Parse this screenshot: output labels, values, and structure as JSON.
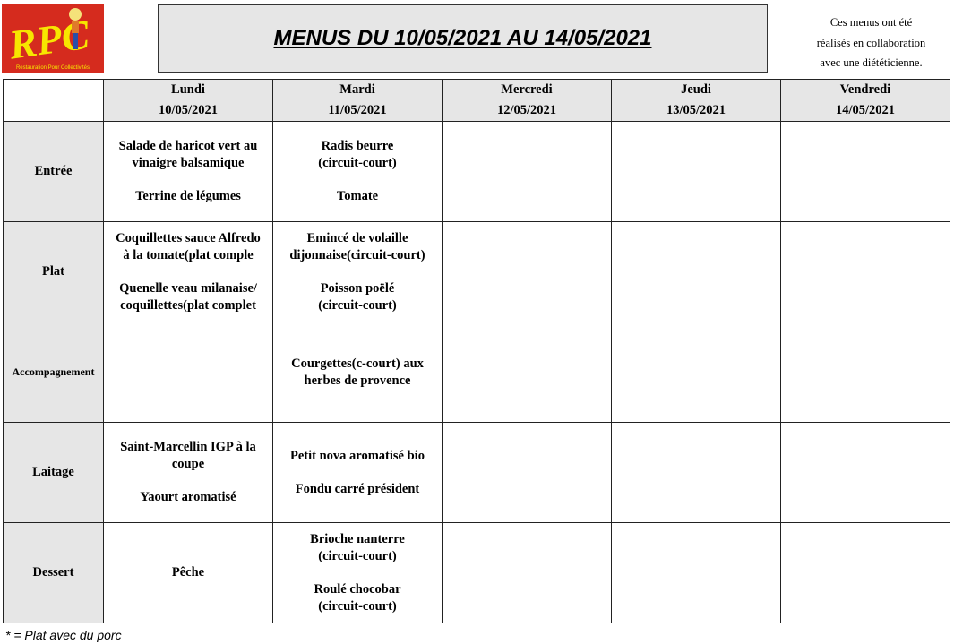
{
  "logo": {
    "text": "RPC",
    "tagline": "Restauration Pour Collectivités",
    "colors": {
      "background": "#d52b1e",
      "letters": "#f7e600"
    }
  },
  "title": "MENUS DU 10/05/2021 AU 14/05/2021",
  "note": "Ces menus ont été\nréalisés en collaboration\navec une diététicienne.",
  "days": [
    {
      "name": "Lundi",
      "date": "10/05/2021"
    },
    {
      "name": "Mardi",
      "date": "11/05/2021"
    },
    {
      "name": "Mercredi",
      "date": "12/05/2021"
    },
    {
      "name": "Jeudi",
      "date": "13/05/2021"
    },
    {
      "name": "Vendredi",
      "date": "14/05/2021"
    }
  ],
  "rows": [
    {
      "label": "Entrée",
      "cells": [
        [
          "Salade de haricot vert au\nvinaigre balsamique",
          "Terrine de légumes"
        ],
        [
          "Radis beurre\n(circuit-court)",
          "Tomate"
        ],
        [],
        [],
        []
      ]
    },
    {
      "label": "Plat",
      "cells": [
        [
          "Coquillettes sauce Alfredo\nà la tomate(plat comple",
          "Quenelle veau milanaise/\ncoquillettes(plat complet"
        ],
        [
          "Emincé de volaille\ndijonnaise(circuit-court)",
          "Poisson poëlé\n(circuit-court)"
        ],
        [],
        [],
        []
      ]
    },
    {
      "label": "Accompagnement",
      "small": true,
      "cells": [
        [],
        [
          "Courgettes(c-court) aux\nherbes de provence"
        ],
        [],
        [],
        []
      ]
    },
    {
      "label": "Laitage",
      "cells": [
        [
          "Saint-Marcellin IGP à la\ncoupe",
          "Yaourt aromatisé"
        ],
        [
          "Petit nova aromatisé bio",
          "Fondu carré président"
        ],
        [],
        [],
        []
      ]
    },
    {
      "label": "Dessert",
      "cells": [
        [
          "Pêche"
        ],
        [
          "Brioche nanterre\n(circuit-court)",
          "Roulé chocobar\n(circuit-court)"
        ],
        [],
        [],
        []
      ]
    }
  ],
  "footer": "* = Plat avec du porc"
}
